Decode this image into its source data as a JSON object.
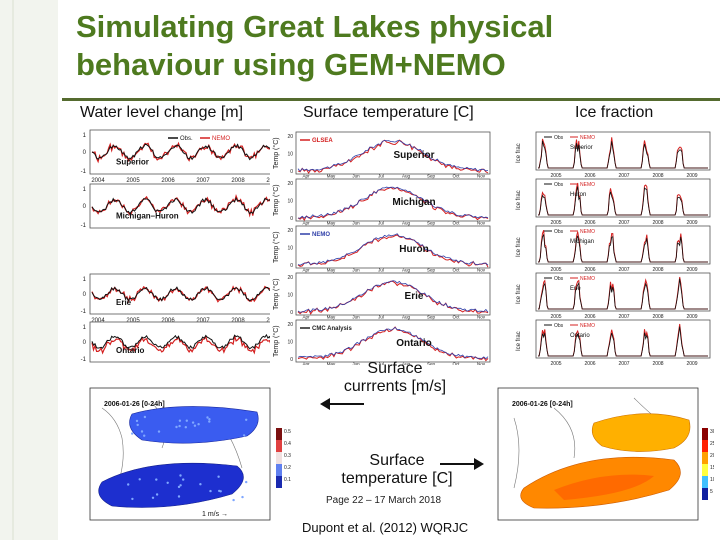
{
  "slide": {
    "title_line1": "Simulating Great Lakes physical",
    "title_line2": "behaviour using GEM+NEMO",
    "headers": {
      "water": "Water level change [m]",
      "surface": "Surface temperature [C]",
      "ice": "Ice fraction"
    },
    "labels": {
      "currents_line1": "Surface",
      "currents_line2": "currrents [m/s]",
      "temp_line1": "Surface",
      "temp_line2": "temperature [C]",
      "page": "Page 22 – 17 March 2018",
      "citation": "Dupont et al. (2012) WQRJC"
    }
  },
  "chart_data": [
    {
      "type": "line",
      "panel": "water-level",
      "legend": [
        "Obs.",
        "NEMO"
      ],
      "colors": {
        "obs": "#111111",
        "model": "#d42020"
      },
      "years": [
        "2004",
        "2005",
        "2006",
        "2007",
        "2008",
        "2009"
      ],
      "ylim": [
        -1,
        1
      ],
      "lakes": [
        "Superior",
        "Michigan–Huron",
        "Erie",
        "Ontario"
      ]
    },
    {
      "type": "line",
      "panel": "surface-temperature",
      "months": [
        "Apr",
        "May",
        "Jun",
        "Jul",
        "Aug",
        "Sep",
        "Oct",
        "Nov"
      ],
      "ylabel": "Temp (°C)",
      "yticks": [
        "0",
        "5",
        "10",
        "15",
        "20",
        "25"
      ],
      "lakes": [
        "Superior",
        "Michigan",
        "Huron",
        "Erie",
        "Ontario"
      ],
      "legends": [
        "GLSEA",
        "NEMO",
        "CMC Analysis"
      ],
      "colors": {
        "obs": "#222222",
        "model": "#d42020",
        "alt": "#2f3fa8"
      }
    },
    {
      "type": "line",
      "panel": "ice-fraction",
      "legend": [
        "Obs",
        "NEMO"
      ],
      "years": [
        "2005",
        "2006",
        "2007",
        "2008",
        "2009"
      ],
      "ylabel": "Ice frac",
      "lakes": [
        "Superior",
        "Huron",
        "Michigan",
        "Erie",
        "Ontario"
      ],
      "colors": {
        "obs": "#111111",
        "model": "#d42020"
      }
    },
    {
      "type": "heatmap",
      "panel": "currents-map",
      "title": "2006-01-26 [0-24h]",
      "colorbar_ticks": [
        "0.5",
        "0.4",
        "0.3",
        "0.2",
        "0.1"
      ],
      "scale_label": "1 m/s →",
      "colors": [
        "#1d2fcf",
        "#3a5cf0",
        "#7fa7ff"
      ]
    },
    {
      "type": "heatmap",
      "panel": "temperature-map",
      "title": "2006-01-26 [0-24h]",
      "colorbar_ticks": [
        "30",
        "25",
        "20",
        "15",
        "10",
        "5"
      ],
      "colors": [
        "#ff8800",
        "#ffb000",
        "#ff6a00"
      ]
    }
  ]
}
